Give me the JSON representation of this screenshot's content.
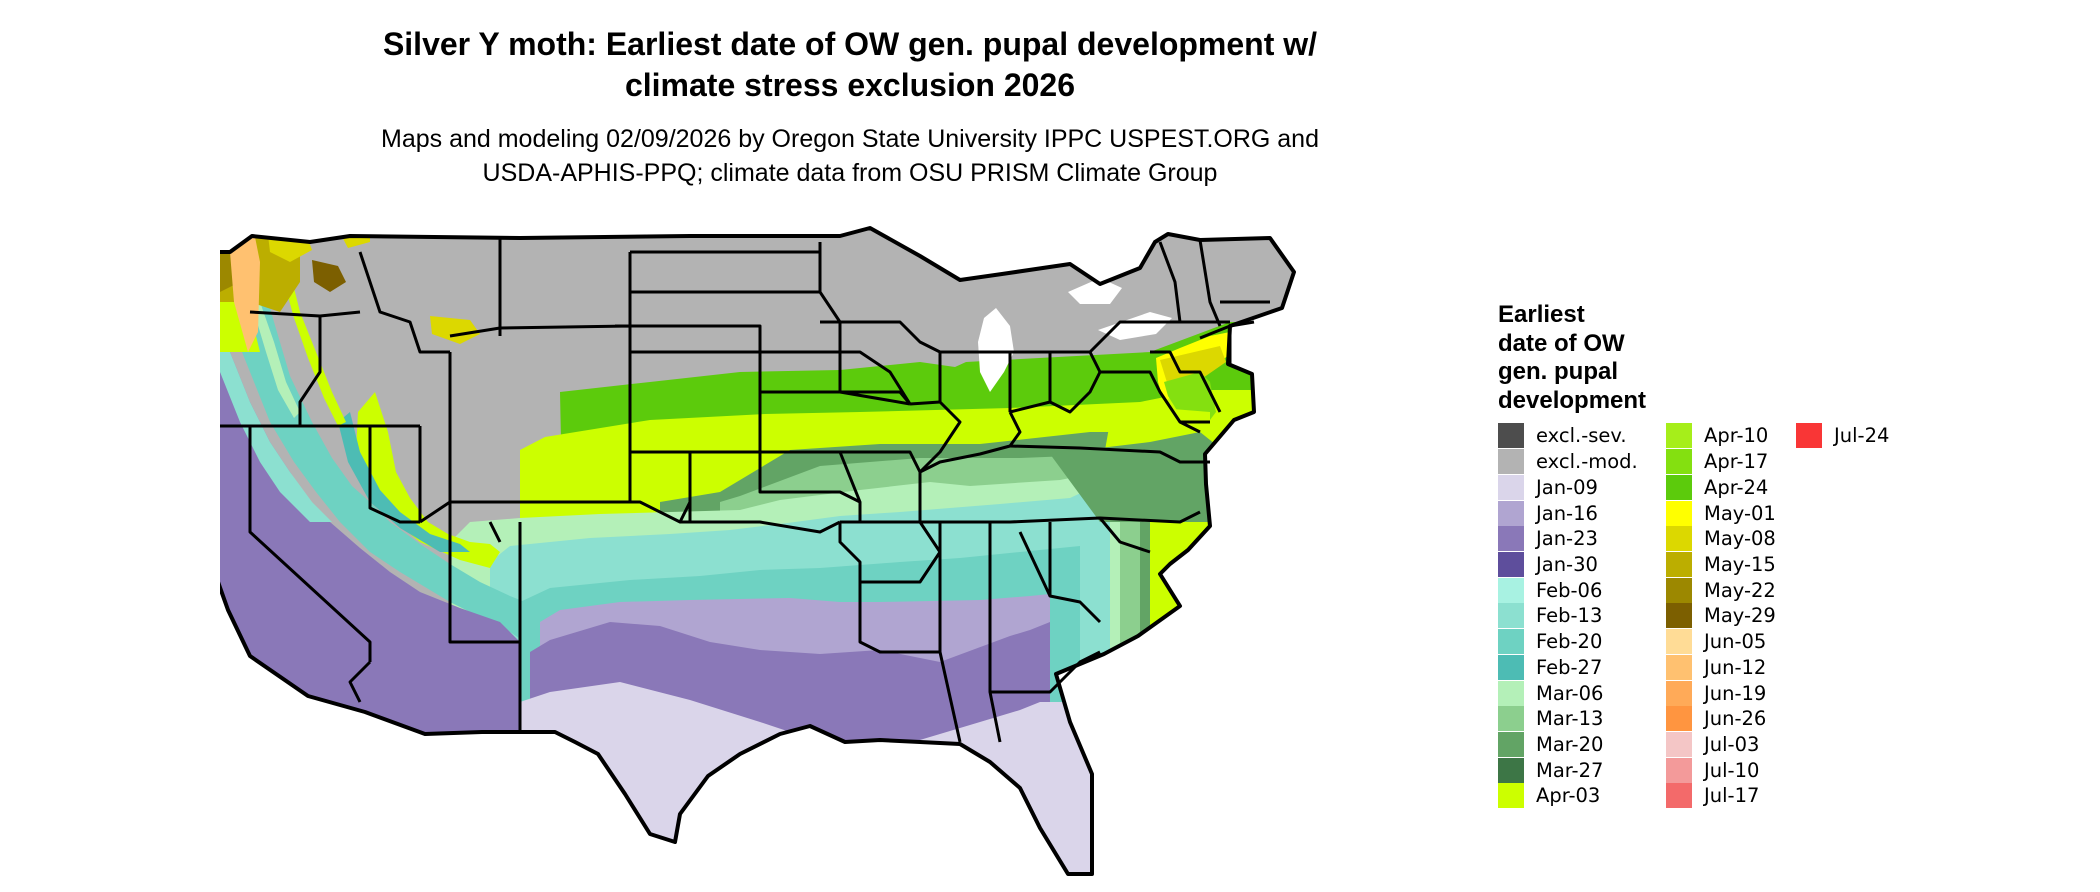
{
  "title": {
    "line1": "Silver Y moth: Earliest date of OW gen. pupal development w/",
    "line2": "climate stress exclusion 2026"
  },
  "subtitle": {
    "line1": "Maps and modeling 02/09/2026 by Oregon State University IPPC USPEST.ORG and",
    "line2": "USDA-APHIS-PPQ; climate data from OSU PRISM Climate Group"
  },
  "legend": {
    "title_lines": [
      "Earliest",
      "date of OW",
      "gen. pupal",
      "development"
    ],
    "columns": [
      [
        {
          "label": "excl.-sev.",
          "color": "#4d4d4d"
        },
        {
          "label": "excl.-mod.",
          "color": "#b3b3b3"
        },
        {
          "label": "Jan-09",
          "color": "#dad5ea"
        },
        {
          "label": "Jan-16",
          "color": "#b0a5d1"
        },
        {
          "label": "Jan-23",
          "color": "#8a78b8"
        },
        {
          "label": "Jan-30",
          "color": "#5e4e9c"
        },
        {
          "label": "Feb-06",
          "color": "#a8f2e2"
        },
        {
          "label": "Feb-13",
          "color": "#8ce0d0"
        },
        {
          "label": "Feb-20",
          "color": "#6ed2c2"
        },
        {
          "label": "Feb-27",
          "color": "#4dbcb4"
        },
        {
          "label": "Mar-06",
          "color": "#b4f0b8"
        },
        {
          "label": "Mar-13",
          "color": "#8ccf8e"
        },
        {
          "label": "Mar-20",
          "color": "#62a465"
        },
        {
          "label": "Mar-27",
          "color": "#3d7646"
        },
        {
          "label": "Apr-03",
          "color": "#ccff00"
        }
      ],
      [
        {
          "label": "Apr-10",
          "color": "#a6ee1a"
        },
        {
          "label": "Apr-17",
          "color": "#84e010"
        },
        {
          "label": "Apr-24",
          "color": "#5ccb0c"
        },
        {
          "label": "May-01",
          "color": "#ffff00"
        },
        {
          "label": "May-08",
          "color": "#dcd800"
        },
        {
          "label": "May-15",
          "color": "#bcae00"
        },
        {
          "label": "May-22",
          "color": "#9c8800"
        },
        {
          "label": "May-29",
          "color": "#7c5f00"
        },
        {
          "label": "Jun-05",
          "color": "#ffdc96"
        },
        {
          "label": "Jun-12",
          "color": "#ffc170"
        },
        {
          "label": "Jun-19",
          "color": "#ffaa58"
        },
        {
          "label": "Jun-26",
          "color": "#ff9540"
        },
        {
          "label": "Jul-03",
          "color": "#f4c6c6"
        },
        {
          "label": "Jul-10",
          "color": "#f39a9a"
        },
        {
          "label": "Jul-17",
          "color": "#f36a6a"
        }
      ],
      [
        {
          "label": "Jul-24",
          "color": "#f93636"
        }
      ]
    ]
  }
}
